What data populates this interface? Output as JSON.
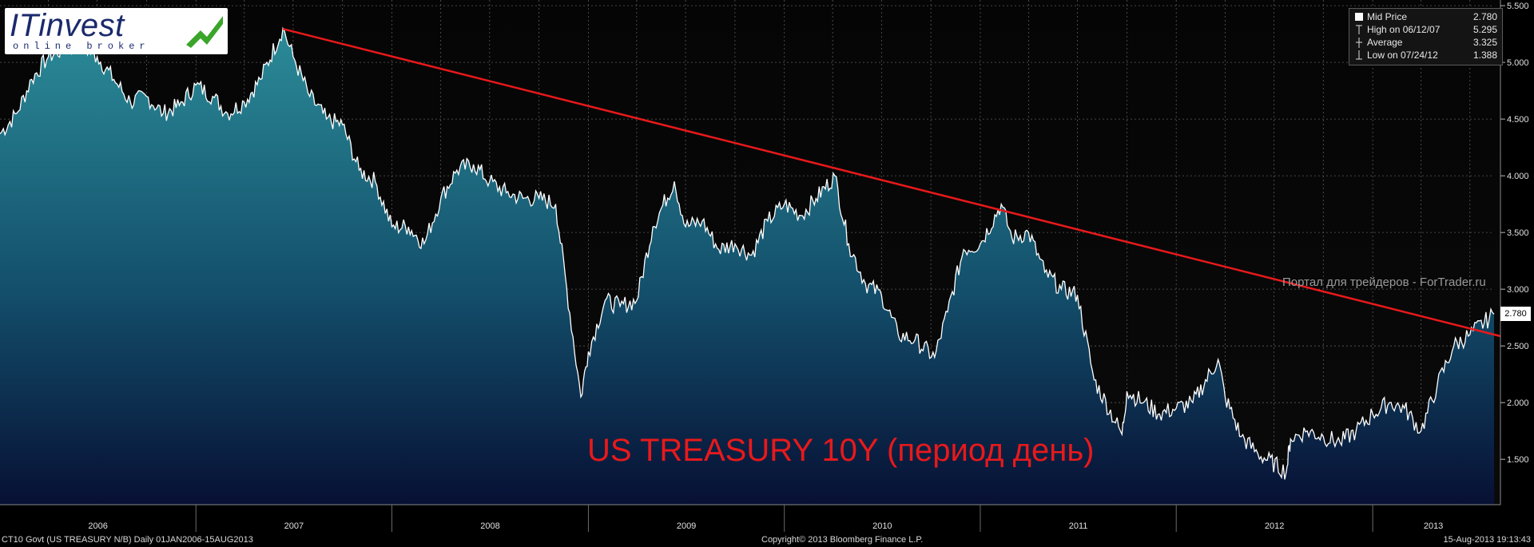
{
  "logo": {
    "name": "ITinvest",
    "tagline": "online broker"
  },
  "legend": {
    "rows": [
      {
        "icon": "square-icon",
        "label": "Mid Price",
        "value": "2.780"
      },
      {
        "icon": "high-marker-icon",
        "label": "High on 06/12/07",
        "value": "5.295"
      },
      {
        "icon": "average-marker-icon",
        "label": "Average",
        "value": "3.325"
      },
      {
        "icon": "low-marker-icon",
        "label": "Low on 07/24/12",
        "value": "1.388"
      }
    ]
  },
  "watermark": "Портал для трейдеров - ForTrader.ru",
  "price_tag": "2.780",
  "footer": {
    "left": "CT10 Govt (US TREASURY N/B)  Daily 01JAN2006-15AUG2013",
    "center": "Copyright© 2013 Bloomberg Finance L.P.",
    "right": "15-Aug-2013 19:13:43"
  },
  "colors": {
    "trendline": "#e8191b",
    "title": "#e8191b",
    "price_line": "#ffffff",
    "fill_top": "#2b8b98",
    "fill_bottom": "#071034",
    "background": "#000000"
  },
  "chart_data": {
    "type": "area",
    "title": "US TREASURY 10Y (период день)",
    "xlabel": "",
    "ylabel": "",
    "x_start": "2006-01-01",
    "x_end": "2013-08-15",
    "ylim": [
      1.1,
      5.55
    ],
    "grid": true,
    "legend_position": "top-right",
    "x_tick_labels": [
      "2006",
      "2007",
      "2008",
      "2009",
      "2010",
      "2011",
      "2012",
      "2013"
    ],
    "y_ticks": [
      1.5,
      2.0,
      2.5,
      3.0,
      3.5,
      4.0,
      4.5,
      5.0,
      5.5
    ],
    "y_tick_labels": [
      "1.500",
      "2.000",
      "2.500",
      "3.000",
      "3.500",
      "4.000",
      "4.500",
      "5.000",
      "5.500"
    ],
    "series": [
      {
        "name": "Mid Price",
        "x": [
          "2006-01-01",
          "2006-02-01",
          "2006-03-01",
          "2006-04-01",
          "2006-05-01",
          "2006-06-01",
          "2006-07-01",
          "2006-08-01",
          "2006-09-01",
          "2006-10-01",
          "2006-11-01",
          "2006-12-01",
          "2007-01-01",
          "2007-02-01",
          "2007-03-01",
          "2007-04-01",
          "2007-05-01",
          "2007-06-12",
          "2007-07-01",
          "2007-08-01",
          "2007-09-01",
          "2007-10-01",
          "2007-11-01",
          "2007-12-01",
          "2008-01-01",
          "2008-02-01",
          "2008-03-01",
          "2008-04-01",
          "2008-05-01",
          "2008-06-01",
          "2008-07-01",
          "2008-08-01",
          "2008-09-01",
          "2008-10-01",
          "2008-11-01",
          "2008-12-18",
          "2009-01-01",
          "2009-02-01",
          "2009-03-01",
          "2009-04-01",
          "2009-05-01",
          "2009-06-10",
          "2009-07-01",
          "2009-08-01",
          "2009-09-01",
          "2009-10-01",
          "2009-11-01",
          "2009-12-01",
          "2010-01-01",
          "2010-02-01",
          "2010-03-01",
          "2010-04-05",
          "2010-05-01",
          "2010-06-01",
          "2010-07-01",
          "2010-08-01",
          "2010-09-01",
          "2010-10-08",
          "2010-11-01",
          "2010-12-01",
          "2011-01-01",
          "2011-02-09",
          "2011-03-01",
          "2011-04-01",
          "2011-05-01",
          "2011-06-01",
          "2011-07-01",
          "2011-08-01",
          "2011-09-22",
          "2011-10-01",
          "2011-11-01",
          "2011-12-01",
          "2012-01-01",
          "2012-02-01",
          "2012-03-19",
          "2012-04-01",
          "2012-05-01",
          "2012-06-01",
          "2012-07-24",
          "2012-08-01",
          "2012-09-01",
          "2012-10-01",
          "2012-11-01",
          "2012-12-01",
          "2013-01-01",
          "2013-02-01",
          "2013-03-01",
          "2013-04-01",
          "2013-05-01",
          "2013-06-01",
          "2013-07-01",
          "2013-08-15"
        ],
        "y": [
          4.37,
          4.55,
          4.85,
          5.05,
          5.12,
          5.15,
          5.05,
          4.85,
          4.65,
          4.7,
          4.55,
          4.62,
          4.8,
          4.7,
          4.55,
          4.65,
          4.85,
          5.3,
          5.05,
          4.7,
          4.5,
          4.45,
          4.05,
          3.95,
          3.55,
          3.55,
          3.4,
          3.8,
          4.05,
          4.1,
          3.95,
          3.85,
          3.8,
          3.8,
          3.75,
          2.05,
          2.45,
          2.9,
          2.85,
          2.9,
          3.55,
          3.95,
          3.55,
          3.6,
          3.35,
          3.4,
          3.3,
          3.6,
          3.75,
          3.65,
          3.8,
          4.0,
          3.4,
          3.05,
          2.95,
          2.6,
          2.55,
          2.4,
          2.8,
          3.35,
          3.4,
          3.75,
          3.45,
          3.5,
          3.15,
          3.0,
          2.95,
          2.2,
          1.72,
          2.1,
          2.0,
          1.9,
          1.95,
          2.0,
          2.38,
          2.05,
          1.7,
          1.55,
          1.39,
          1.68,
          1.75,
          1.7,
          1.65,
          1.75,
          1.9,
          2.0,
          1.95,
          1.75,
          2.15,
          2.5,
          2.6,
          2.78
        ]
      }
    ],
    "trendline": {
      "x": [
        "2007-06-12",
        "2013-08-15"
      ],
      "y": [
        5.295,
        2.6
      ]
    }
  }
}
